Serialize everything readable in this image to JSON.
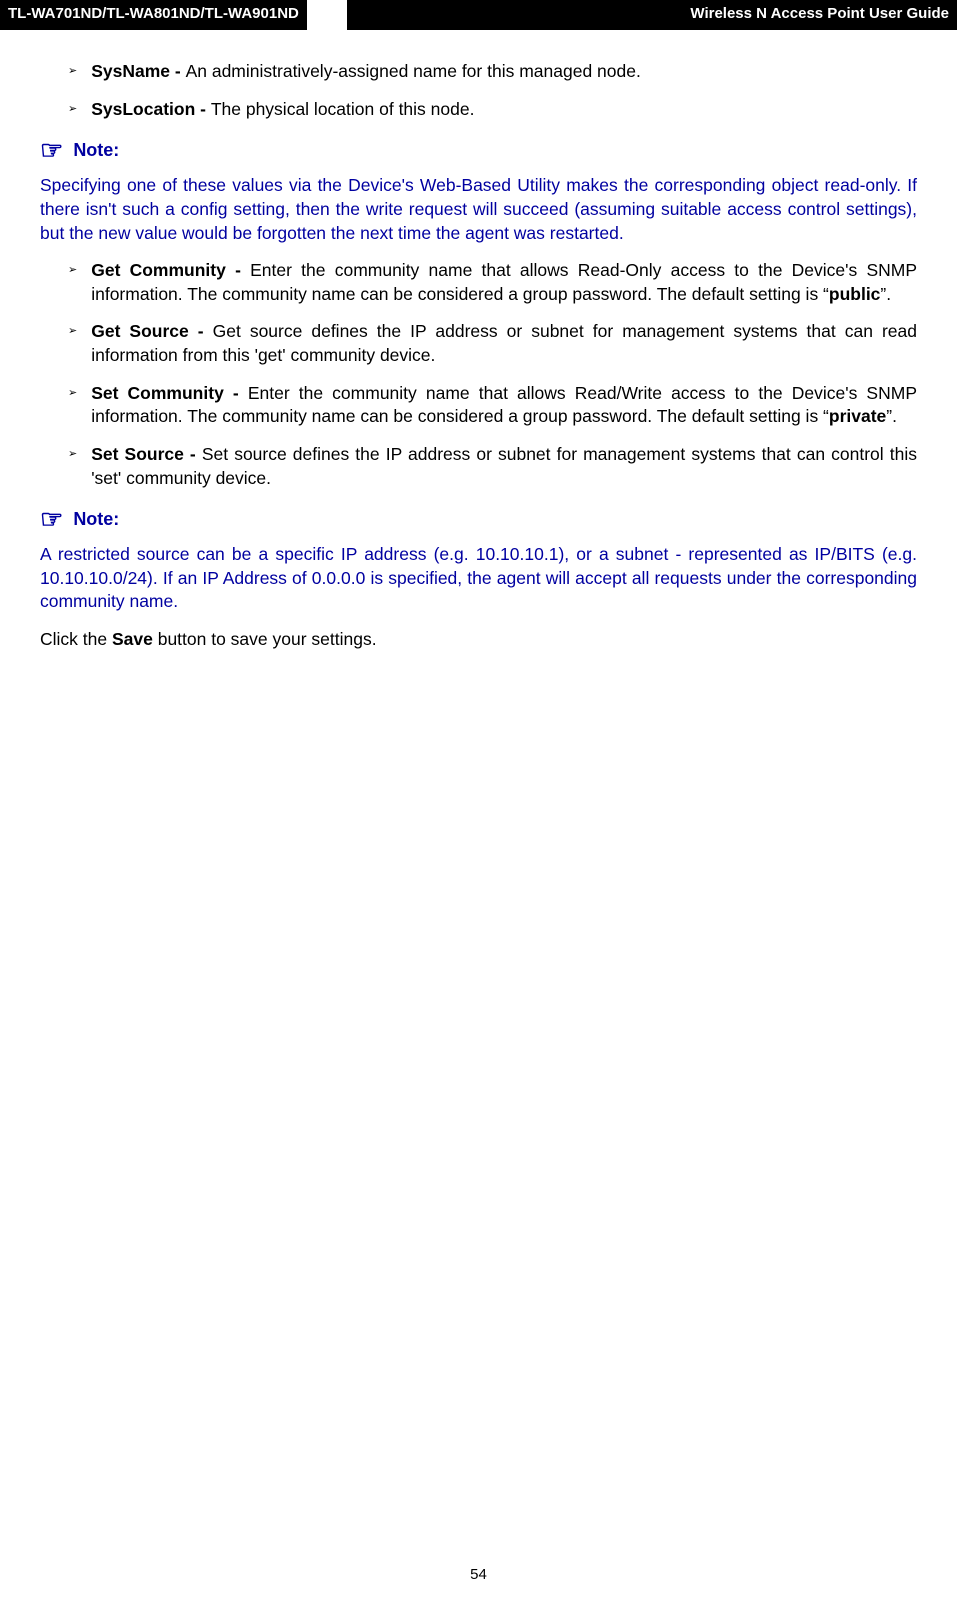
{
  "header": {
    "left": "TL-WA701ND/TL-WA801ND/TL-WA901ND",
    "right": "Wireless N Access Point User Guide"
  },
  "items": {
    "sysname_label": "SysName - ",
    "sysname_text": "An administratively-assigned name for this managed node.",
    "syslocation_label": "SysLocation - ",
    "syslocation_text": "The physical location of this node.",
    "getcommunity_label": "Get Community - ",
    "getcommunity_text_a": "Enter the community name that allows Read-Only access to the Device's SNMP information. The community name can be considered a group password. The default setting is “",
    "getcommunity_bold": "public",
    "getcommunity_text_b": "”.",
    "getsource_label": "Get Source - ",
    "getsource_text": "Get source defines the IP address or subnet for management systems that can read information from this 'get' community device.",
    "setcommunity_label": "Set Community - ",
    "setcommunity_text_a": "Enter the community name that allows Read/Write access to the Device's SNMP information. The community name can be considered a group password. The default setting is “",
    "setcommunity_bold": "private",
    "setcommunity_text_b": "”.",
    "setsource_label": "Set Source - ",
    "setsource_text": "Set source defines the IP address or subnet for management systems that can control this 'set' community device."
  },
  "notes": {
    "label": "Note:",
    "note1": "Specifying one of these values via the Device's Web-Based Utility makes the corresponding object read-only. If there isn't such a config setting, then the write request will succeed (assuming suitable access control settings), but the new value would be forgotten the next time the agent was restarted.",
    "note2": "A restricted source can be a specific IP address (e.g. 10.10.10.1), or a subnet - represented as IP/BITS (e.g. 10.10.10.0/24). If an IP Address of 0.0.0.0 is specified, the agent will accept all requests under the corresponding community name."
  },
  "save_para_a": "Click the ",
  "save_para_bold": "Save",
  "save_para_b": " button to save your settings.",
  "page_number": "54",
  "colors": {
    "header_bg": "#000000",
    "header_fg": "#ffffff",
    "note_color": "#0000a0",
    "body_bg": "#ffffff"
  }
}
